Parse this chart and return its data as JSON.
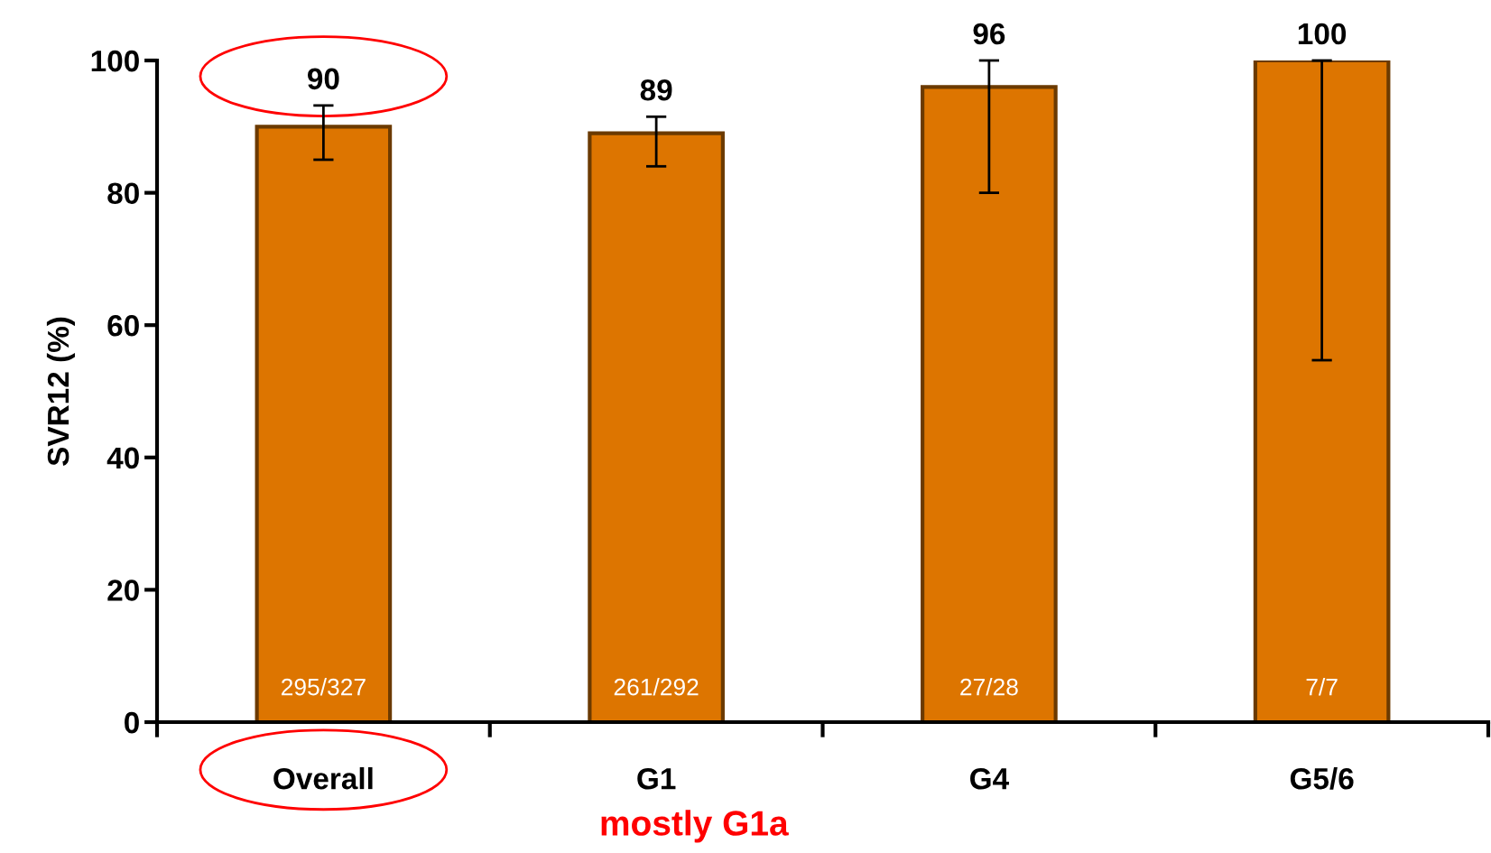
{
  "chart_data": {
    "type": "bar",
    "ylabel": "SVR12 (%)",
    "categories": [
      "Overall",
      "G1",
      "G4",
      "G5/6"
    ],
    "values": [
      90,
      89,
      96,
      100
    ],
    "color": "#dd7500",
    "errors": [
      [
        85,
        93.2
      ],
      [
        84,
        91.5
      ],
      [
        80,
        100
      ],
      [
        54.7,
        100
      ]
    ],
    "data_labels": true,
    "ylim": [
      0,
      100
    ],
    "yticks": [
      0,
      20,
      40,
      60,
      80,
      100
    ],
    "grid": false,
    "annotations": [
      "295/327",
      "261/292",
      "27/28",
      "7/7",
      "mostly G1a"
    ]
  }
}
